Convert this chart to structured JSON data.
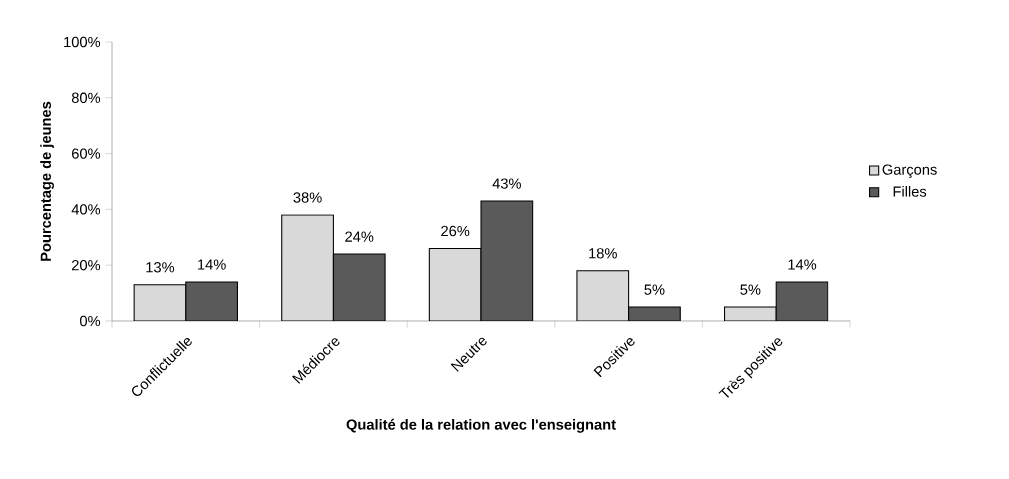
{
  "chart_data": {
    "type": "bar",
    "xlabel": "Qualité de la relation avec l'enseignant",
    "ylabel": "Pourcentage de jeunes",
    "categories": [
      "Conflictuelle",
      "Médiocre",
      "Neutre",
      "Positive",
      "Très positive"
    ],
    "series": [
      {
        "name": "Garçons",
        "color": "#d9d9d9",
        "values": [
          13,
          38,
          26,
          18,
          5
        ],
        "value_labels": [
          "13%",
          "38%",
          "26%",
          "18%",
          "5%"
        ]
      },
      {
        "name": "Filles",
        "color": "#5a5a5a",
        "values": [
          14,
          24,
          43,
          5,
          14
        ],
        "value_labels": [
          "14%",
          "24%",
          "43%",
          "5%",
          "14%"
        ]
      }
    ],
    "ylim": [
      0,
      100
    ],
    "yticks": [
      {
        "value": 0,
        "label": "0%"
      },
      {
        "value": 20,
        "label": "20%"
      },
      {
        "value": 40,
        "label": "40%"
      },
      {
        "value": 60,
        "label": "60%"
      },
      {
        "value": 80,
        "label": "80%"
      },
      {
        "value": 100,
        "label": "100%"
      }
    ],
    "legend": "right"
  }
}
